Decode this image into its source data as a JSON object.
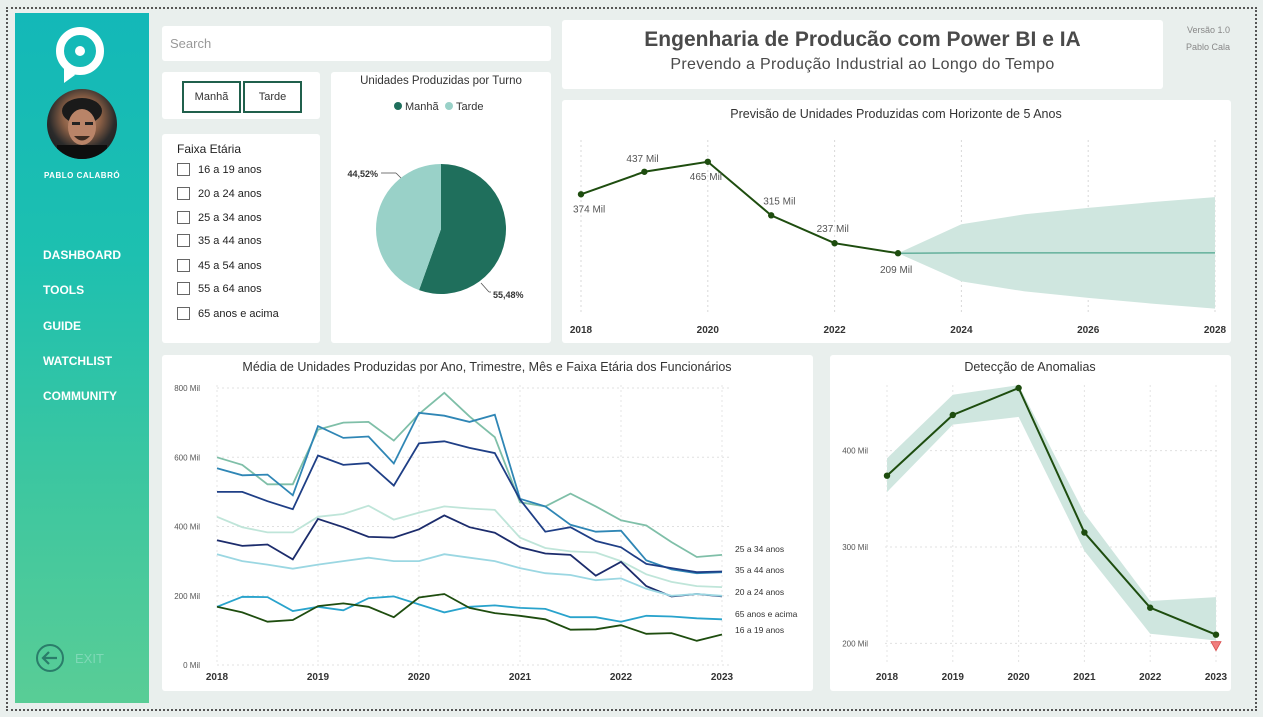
{
  "sidebar": {
    "username": "PABLO CALABRÓ",
    "logo_icon": "brand-logo-icon",
    "nav": [
      "DASHBOARD",
      "TOOLS",
      "GUIDE",
      "WATCHLIST",
      "COMMUNITY"
    ],
    "exit_label": "EXIT"
  },
  "search": {
    "placeholder": "Search",
    "value": ""
  },
  "header": {
    "title": "Engenharia de Producão com Power BI e IA",
    "subtitle": "Prevendo a Produção Industrial ao Longo do Tempo",
    "version": "Versão 1.0",
    "author": "Pablo Cala"
  },
  "shift_filter": {
    "buttons": [
      "Manhã",
      "Tarde"
    ]
  },
  "age_filter": {
    "title": "Faixa Etária",
    "items": [
      "16 a 19 anos",
      "20 a 24 anos",
      "25 a 34 anos",
      "35 a 44 anos",
      "45 a 54 anos",
      "55 a 64 anos",
      "65 anos e acima"
    ]
  },
  "colors": {
    "dark_green": "#1f6f5c",
    "light_green": "#99d1c8",
    "line_dark": "#1e4d0f",
    "band": "#cfe6df"
  },
  "chart_data": [
    {
      "id": "pie",
      "type": "pie",
      "title": "Unidades Produzidas por Turno",
      "legend": [
        "Manhã",
        "Tarde"
      ],
      "values": [
        55.48,
        44.52
      ],
      "labels": [
        "55,48%",
        "44,52%"
      ],
      "colors": [
        "#1f6f5c",
        "#99d1c8"
      ]
    },
    {
      "id": "forecast",
      "type": "line",
      "title": "Previsão de Unidades Produzidas com Horizonte de 5 Anos",
      "x": [
        2018,
        2019,
        2020,
        2021,
        2022,
        2023
      ],
      "values": [
        374,
        437,
        465,
        315,
        237,
        209
      ],
      "data_labels": [
        "374 Mil",
        "437 Mil",
        "465 Mil",
        "315 Mil",
        "237 Mil",
        "209 Mil"
      ],
      "forecast": {
        "x": [
          2023,
          2024,
          2025,
          2026,
          2027,
          2028
        ],
        "values": [
          209,
          210,
          210,
          210,
          210,
          210
        ],
        "upper": [
          209,
          290,
          318,
          336,
          352,
          366
        ],
        "lower": [
          209,
          130,
          102,
          84,
          68,
          54
        ]
      },
      "xticks": [
        "2018",
        "2020",
        "2022",
        "2024",
        "2026",
        "2028"
      ],
      "xlim": [
        2018,
        2028
      ]
    },
    {
      "id": "avg",
      "type": "line",
      "title": "Média de Unidades Produzidas por Ano, Trimestre, Mês e Faixa Etária dos Funcionários",
      "yticks": [
        "800 Mil",
        "600 Mil",
        "400 Mil",
        "200 Mil",
        "0 Mil"
      ],
      "xticks": [
        "2018",
        "2019",
        "2020",
        "2021",
        "2022",
        "2023"
      ],
      "ylim": [
        0,
        800
      ],
      "series": [
        {
          "name": "",
          "color": "#7fbfa8",
          "values": [
            600,
            578,
            522,
            522,
            680,
            700,
            702,
            648,
            725,
            786,
            718,
            658,
            470,
            458,
            495,
            458,
            418,
            403,
            355,
            312,
            318
          ]
        },
        {
          "name": "",
          "color": "#2f86b5",
          "values": [
            568,
            548,
            550,
            490,
            690,
            656,
            660,
            582,
            728,
            720,
            702,
            723,
            480,
            458,
            405,
            385,
            388,
            302,
            276,
            265,
            268
          ]
        },
        {
          "name": "",
          "color": "#1f3f86",
          "values": [
            500,
            500,
            473,
            450,
            605,
            578,
            583,
            518,
            640,
            646,
            627,
            612,
            478,
            385,
            398,
            358,
            340,
            292,
            280,
            268,
            270
          ]
        },
        {
          "name": "25 a 34 anos",
          "color": "#bfe5d9",
          "values": [
            428,
            398,
            383,
            383,
            428,
            436,
            460,
            420,
            440,
            458,
            452,
            448,
            368,
            338,
            328,
            325,
            300,
            262,
            240,
            228,
            225
          ]
        },
        {
          "name": "35 a 44 anos",
          "color": "#1c2c6c",
          "values": [
            360,
            344,
            348,
            305,
            422,
            398,
            370,
            368,
            392,
            432,
            398,
            382,
            340,
            322,
            318,
            258,
            298,
            228,
            198,
            205,
            198
          ]
        },
        {
          "name": "20 a 24 anos",
          "color": "#9bd7e2",
          "values": [
            320,
            300,
            290,
            278,
            290,
            300,
            310,
            300,
            300,
            320,
            310,
            300,
            280,
            265,
            260,
            245,
            250,
            220,
            200,
            205,
            200
          ]
        },
        {
          "name": "65 anos e acima",
          "color": "#29a3cc",
          "values": [
            168,
            197,
            196,
            156,
            168,
            158,
            193,
            198,
            175,
            152,
            168,
            172,
            165,
            162,
            138,
            138,
            125,
            142,
            140,
            135,
            132
          ]
        },
        {
          "name": "16 a 19 anos",
          "color": "#1e4d0f",
          "values": [
            168,
            152,
            125,
            130,
            170,
            178,
            168,
            138,
            195,
            205,
            165,
            150,
            142,
            132,
            102,
            103,
            115,
            90,
            92,
            70,
            88
          ]
        }
      ],
      "right_labels": [
        "25 a 34 anos",
        "35 a 44 anos",
        "20 a 24 anos",
        "65 anos e acima",
        "16 a 19 anos"
      ]
    },
    {
      "id": "anomaly",
      "type": "line",
      "title": "Detecção de Anomalias",
      "x": [
        2018,
        2019,
        2020,
        2021,
        2022,
        2023
      ],
      "values": [
        374,
        437,
        465,
        315,
        237,
        209
      ],
      "upper": [
        392,
        458,
        468,
        335,
        244,
        248
      ],
      "lower": [
        357,
        427,
        435,
        296,
        210,
        203
      ],
      "anomaly_index": 5,
      "yticks": [
        "400 Mil",
        "300 Mil",
        "200 Mil"
      ],
      "xticks": [
        "2018",
        "2019",
        "2020",
        "2021",
        "2022",
        "2023"
      ],
      "ylim": [
        190,
        465
      ]
    }
  ]
}
